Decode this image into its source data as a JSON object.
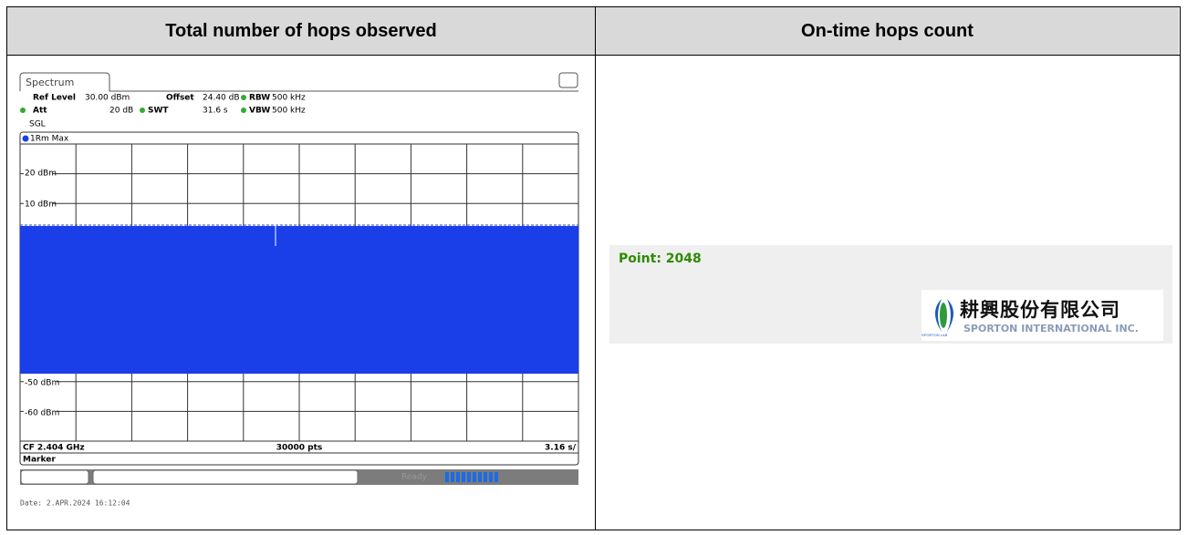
{
  "table": {
    "headers": [
      "Total number of hops observed",
      "On-time hops count"
    ]
  },
  "spectrum": {
    "tab": "Spectrum",
    "settings": {
      "ref_level_label": "Ref Level",
      "ref_level": "30.00 dBm",
      "offset_label": "Offset",
      "offset": "24.40 dB",
      "rbw_label": "RBW",
      "rbw": "500 kHz",
      "att_label": "Att",
      "att": "20 dB",
      "swt_label": "SWT",
      "swt": "31.6 s",
      "vbw_label": "VBW",
      "vbw": "500 kHz",
      "mode": "SGL"
    },
    "trace": "1Rm Max",
    "y_labels": [
      "20 dBm",
      "10 dBm",
      "-50 dBm",
      "-60 dBm"
    ],
    "footer": {
      "center": "CF 2.404 GHz",
      "points": "30000 pts",
      "span": "3.16 s/"
    },
    "marker": "Marker",
    "status": "Ready",
    "date": "Date: 2.APR.2024  16:12:04"
  },
  "point": "Point: 2048",
  "logo": {
    "chinese": "耕興股份有限公司",
    "english": "SPORTON INTERNATIONAL INC.",
    "small": "SPORTON LAB"
  }
}
